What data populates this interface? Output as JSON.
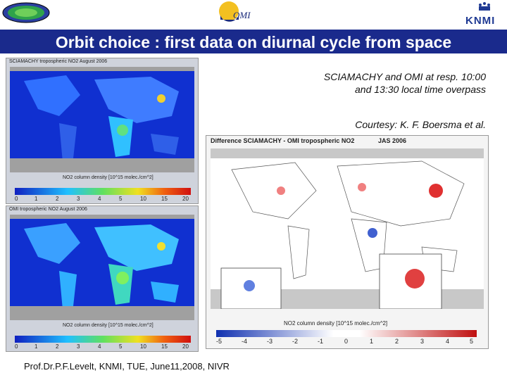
{
  "header": {
    "omi_logo_text": "OMI",
    "knmi_logo_text": "KNMI"
  },
  "title": "Orbit choice : first data on diurnal cycle from space",
  "notes": {
    "line1": "SCIAMACHY and OMI at resp. 10:00",
    "line2": "and 13:30 local time overpass",
    "courtesy": "Courtesy: K. F. Boersma et al."
  },
  "panels": {
    "top_left": {
      "label": "SCIAMACHY tropospheric NO2   August 2006",
      "colorbar_label": "NO2 column density [10^15 molec./cm^2]",
      "ticks": [
        "0",
        "1",
        "2",
        "3",
        "4",
        "5",
        "10",
        "15",
        "20"
      ]
    },
    "bottom_left": {
      "label": "OMI tropospheric NO2   August 2006",
      "colorbar_label": "NO2 column density [10^15 molec./cm^2]",
      "ticks": [
        "0",
        "1",
        "2",
        "3",
        "4",
        "5",
        "10",
        "15",
        "20"
      ]
    },
    "right": {
      "label": "Difference SCIAMACHY - OMI tropospheric NO2",
      "tag": "JAS 2006",
      "colorbar_label": "NO2 column density [10^15 molec./cm^2]",
      "ticks": [
        "-5",
        "-4",
        "-3",
        "-2",
        "-1",
        "0",
        "1",
        "2",
        "3",
        "4",
        "5"
      ]
    }
  },
  "footer": "Prof.Dr.P.F.Levelt, KNMI, TUE, June11,2008, NIVR",
  "colors": {
    "title_bar": "#1a2a8c",
    "ocean_blue": "#1030d0",
    "land_grey": "#a0a0a0"
  }
}
